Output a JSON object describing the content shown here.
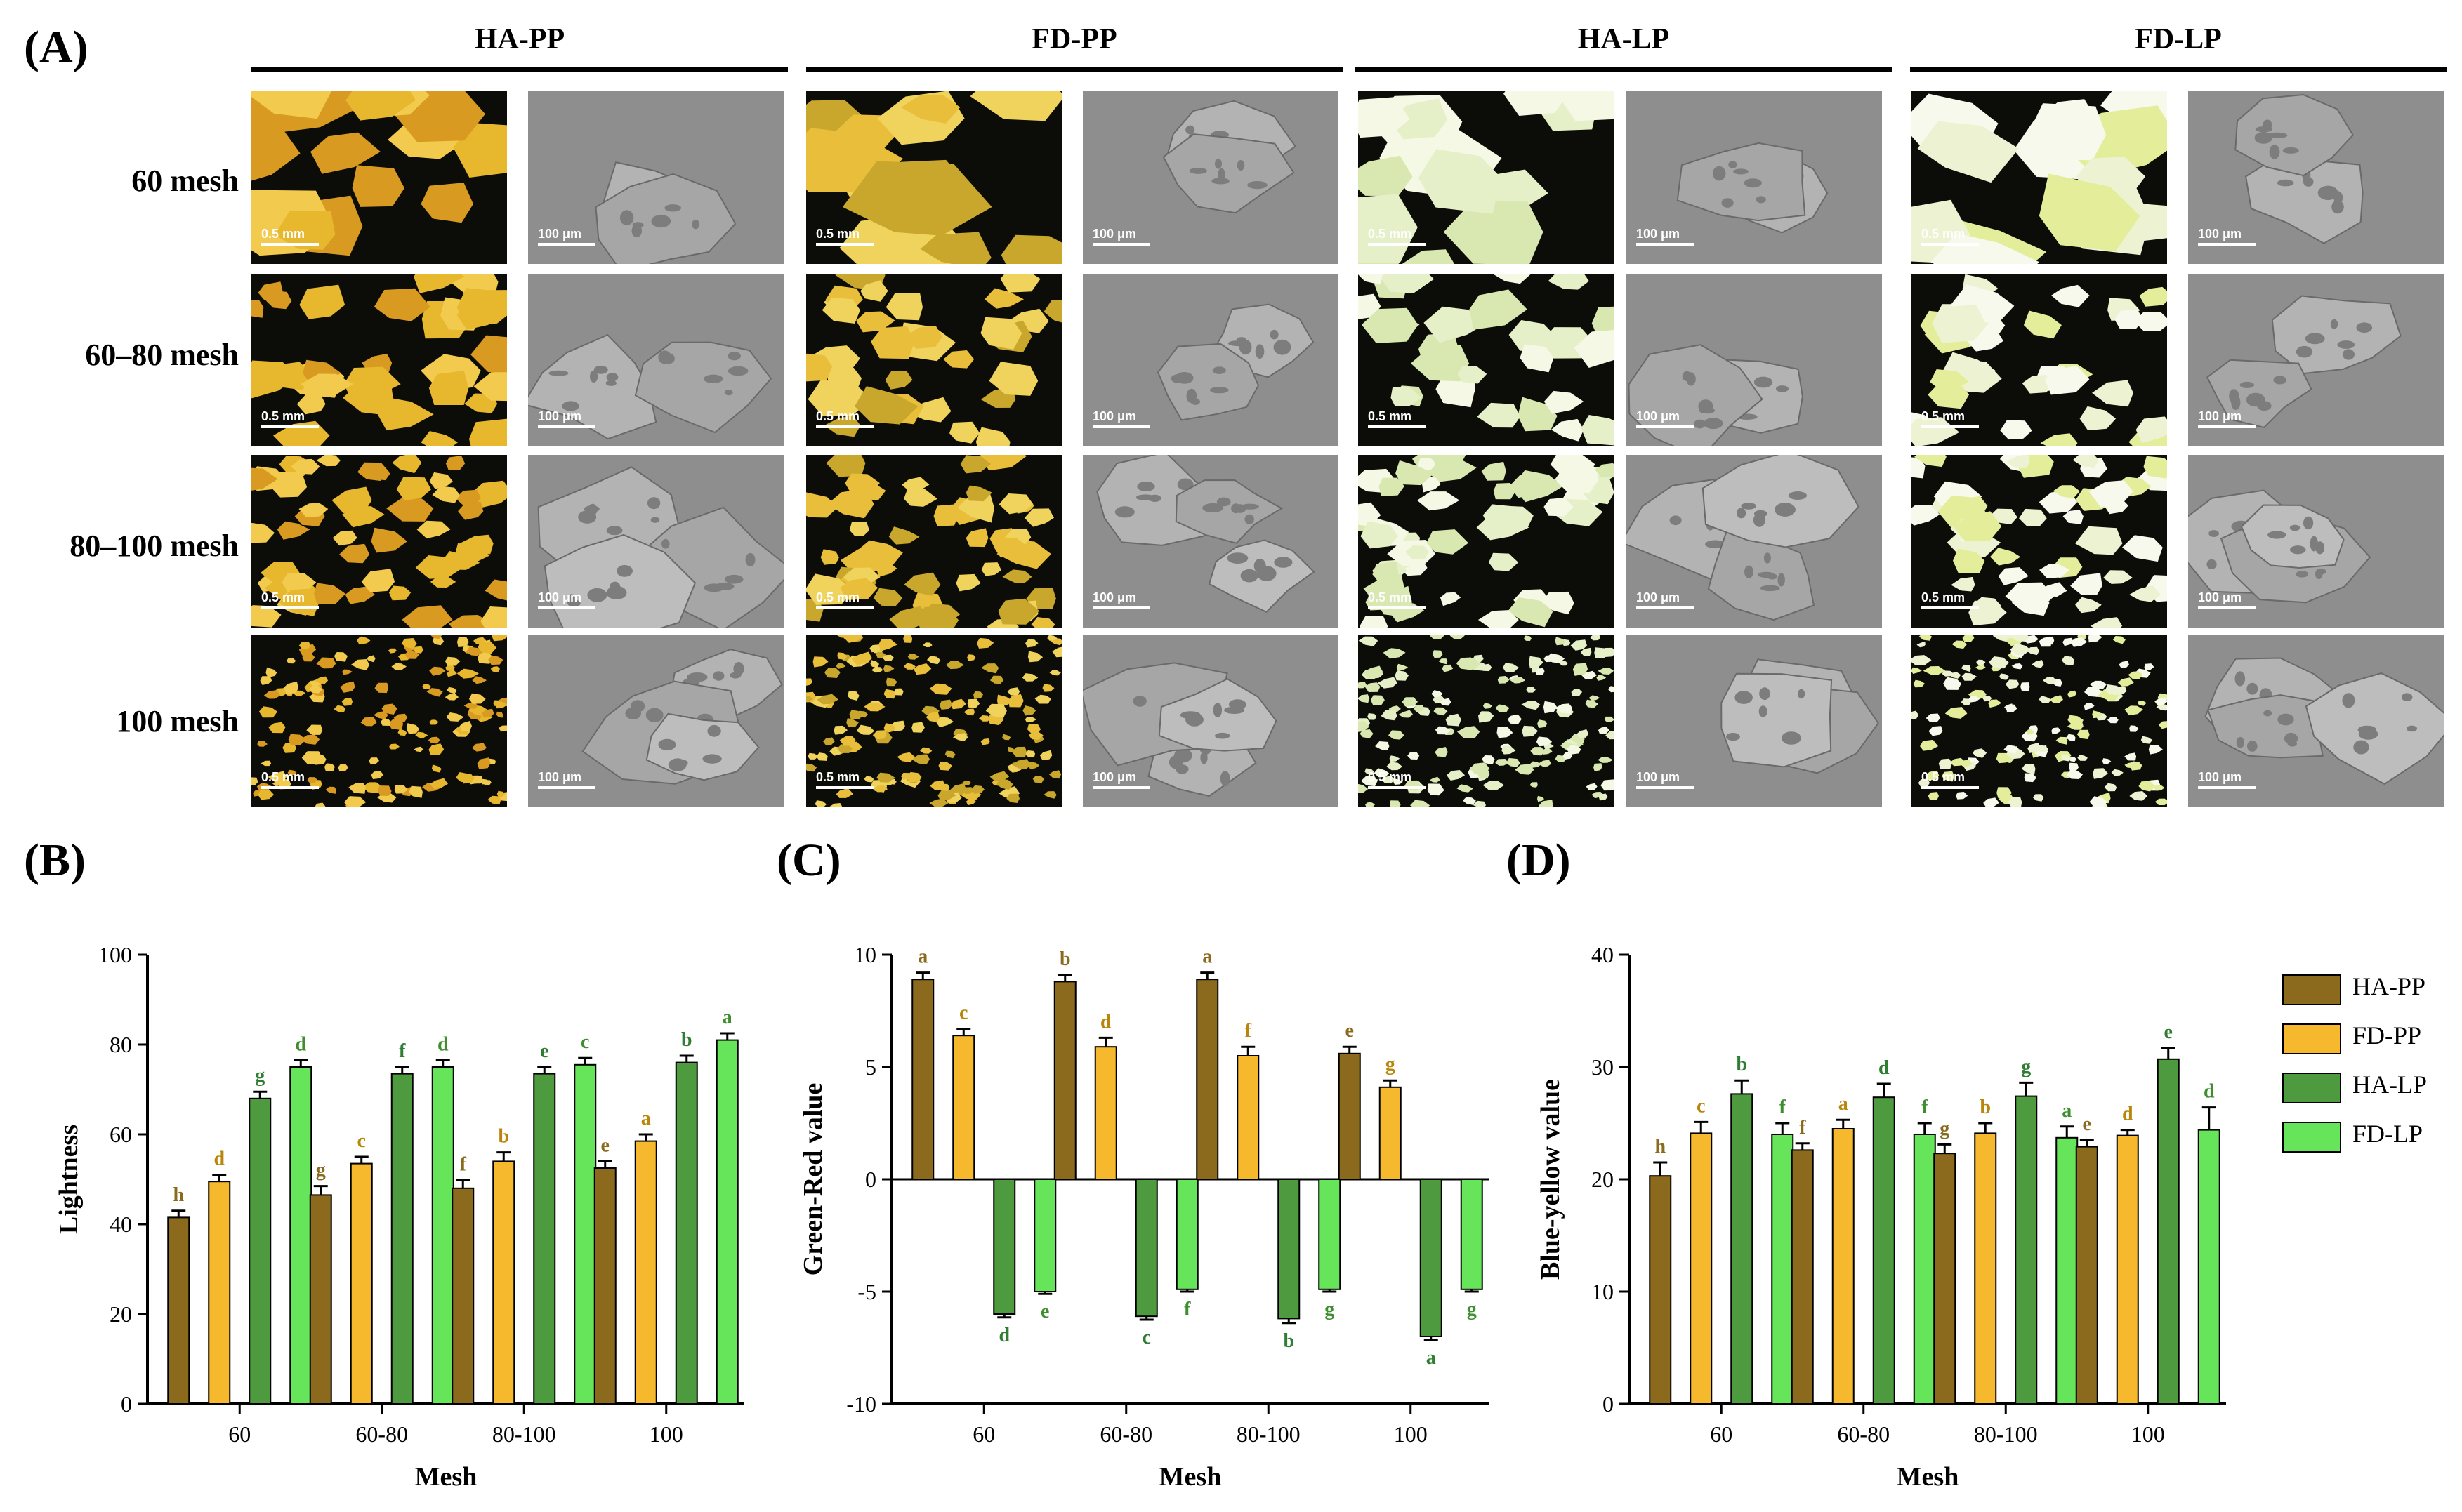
{
  "panel_a": {
    "label": "(A)",
    "groups": [
      "HA-PP",
      "FD-PP",
      "HA-LP",
      "FD-LP"
    ],
    "rows": [
      "60 mesh",
      "60–80 mesh",
      "80–100 mesh",
      "100 mesh"
    ],
    "optical_scale": "0.5 mm",
    "sem_scale": "100 μm"
  },
  "legend": {
    "items": [
      {
        "name": "HA-PP",
        "color": "#8B6A1E"
      },
      {
        "name": "FD-PP",
        "color": "#F6B82D"
      },
      {
        "name": "HA-LP",
        "color": "#4E9A3E"
      },
      {
        "name": "FD-LP",
        "color": "#66E45A"
      }
    ]
  },
  "chart_data": [
    {
      "panel": "(B)",
      "type": "bar",
      "title": "",
      "xlabel": "Mesh",
      "ylabel": "Lightness",
      "categories": [
        "60",
        "60-80",
        "80-100",
        "100"
      ],
      "ylim": [
        0,
        100
      ],
      "yticks": [
        0,
        20,
        40,
        60,
        80,
        100
      ],
      "series": [
        {
          "name": "HA-PP",
          "values": [
            41.5,
            46.5,
            48,
            52.5
          ],
          "errors": [
            1.5,
            2,
            1.8,
            1.5
          ],
          "letters": [
            "h",
            "g",
            "f",
            "e"
          ]
        },
        {
          "name": "FD-PP",
          "values": [
            49.5,
            53.5,
            54,
            58.5
          ],
          "errors": [
            1.5,
            1.5,
            2,
            1.5
          ],
          "letters": [
            "d",
            "c",
            "b",
            "a"
          ]
        },
        {
          "name": "HA-LP",
          "values": [
            68,
            73.5,
            73.5,
            76
          ],
          "errors": [
            1.5,
            1.5,
            1.5,
            1.5
          ],
          "letters": [
            "g",
            "f",
            "e",
            "b"
          ]
        },
        {
          "name": "FD-LP",
          "values": [
            75,
            75,
            75.5,
            81
          ],
          "errors": [
            1.5,
            1.5,
            1.5,
            1.5
          ],
          "letters": [
            "d",
            "d",
            "c",
            "a"
          ]
        }
      ]
    },
    {
      "panel": "(C)",
      "type": "bar",
      "title": "",
      "xlabel": "Mesh",
      "ylabel": "Green-Red value",
      "categories": [
        "60",
        "60-80",
        "80-100",
        "100"
      ],
      "ylim": [
        -10,
        10
      ],
      "yticks": [
        -10,
        -5,
        0,
        5,
        10
      ],
      "series": [
        {
          "name": "HA-PP",
          "values": [
            8.9,
            8.8,
            8.9,
            5.6
          ],
          "errors": [
            0.3,
            0.3,
            0.3,
            0.3
          ],
          "letters": [
            "a",
            "b",
            "a",
            "e"
          ]
        },
        {
          "name": "FD-PP",
          "values": [
            6.4,
            5.9,
            5.5,
            4.1
          ],
          "errors": [
            0.3,
            0.4,
            0.4,
            0.3
          ],
          "letters": [
            "c",
            "d",
            "f",
            "g"
          ]
        },
        {
          "name": "HA-LP",
          "values": [
            -6.0,
            -6.1,
            -6.2,
            -7.0
          ],
          "errors": [
            0.15,
            0.15,
            0.2,
            0.15
          ],
          "letters": [
            "d",
            "c",
            "b",
            "a"
          ]
        },
        {
          "name": "FD-LP",
          "values": [
            -5.0,
            -4.9,
            -4.9,
            -4.9
          ],
          "errors": [
            0.1,
            0.1,
            0.1,
            0.1
          ],
          "letters": [
            "e",
            "f",
            "g",
            "g"
          ]
        }
      ]
    },
    {
      "panel": "(D)",
      "type": "bar",
      "title": "",
      "xlabel": "Mesh",
      "ylabel": "Blue-yellow value",
      "categories": [
        "60",
        "60-80",
        "80-100",
        "100"
      ],
      "ylim": [
        0,
        40
      ],
      "yticks": [
        0,
        10,
        20,
        30,
        40
      ],
      "series": [
        {
          "name": "HA-PP",
          "values": [
            20.3,
            22.6,
            22.3,
            22.9
          ],
          "errors": [
            1.2,
            0.6,
            0.8,
            0.6
          ],
          "letters": [
            "h",
            "f",
            "g",
            "e"
          ]
        },
        {
          "name": "FD-PP",
          "values": [
            24.1,
            24.5,
            24.1,
            23.9
          ],
          "errors": [
            1.0,
            0.8,
            0.9,
            0.5
          ],
          "letters": [
            "c",
            "a",
            "b",
            "d"
          ]
        },
        {
          "name": "HA-LP",
          "values": [
            27.6,
            27.3,
            27.4,
            30.7
          ],
          "errors": [
            1.2,
            1.2,
            1.2,
            1.0
          ],
          "letters": [
            "b",
            "d",
            "g",
            "e"
          ]
        },
        {
          "name": "FD-LP",
          "values": [
            24.0,
            24.0,
            23.7,
            24.4
          ],
          "errors": [
            1.0,
            1.0,
            1.0,
            2.0
          ],
          "letters": [
            "f",
            "f",
            "a",
            "d"
          ]
        }
      ]
    }
  ]
}
